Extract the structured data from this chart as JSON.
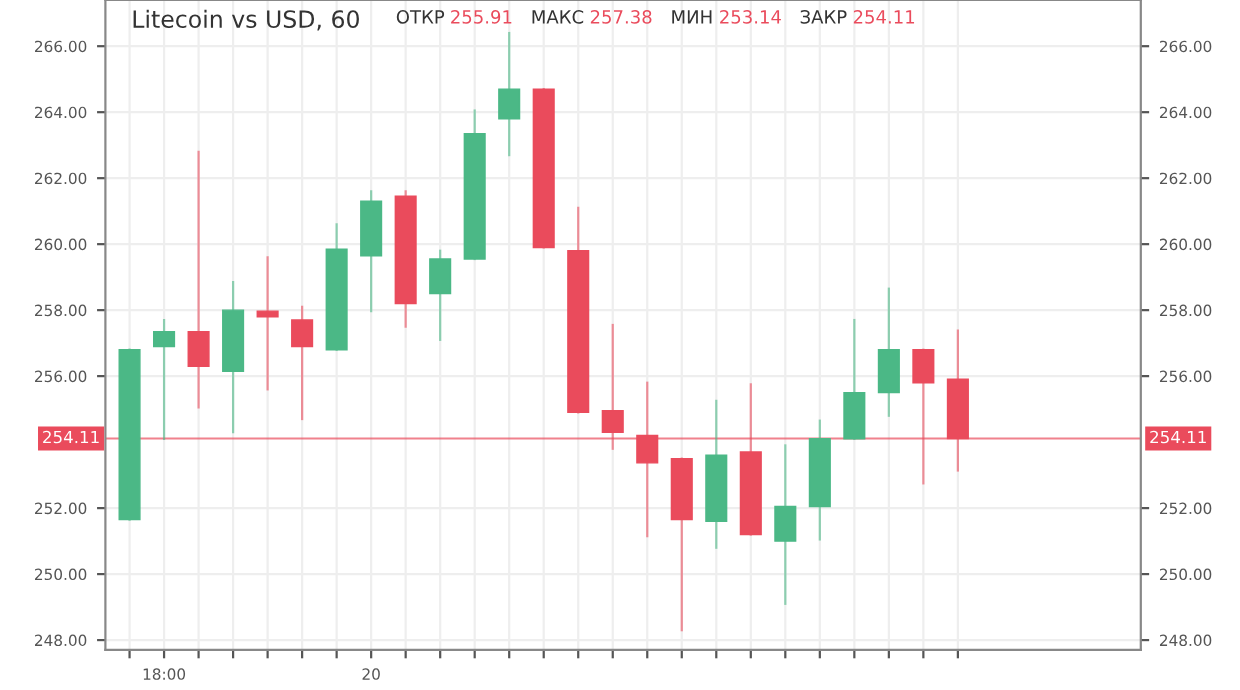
{
  "chart_data": {
    "type": "candlestick",
    "title": "Litecoin vs USD, 60",
    "annotations": [
      "ОТКР 255.91",
      "МАКС 257.38",
      "МИН 253.14",
      "ЗАКР 254.11"
    ],
    "categories": [
      null,
      "18:00",
      null,
      null,
      null,
      null,
      null,
      "20",
      null,
      null,
      null,
      null,
      null,
      null,
      null,
      null,
      null,
      null,
      null,
      null,
      null,
      null,
      null,
      null,
      null
    ],
    "ohlc": [
      [
        251.65,
        256.8,
        251.65,
        256.8
      ],
      [
        256.9,
        257.7,
        254.1,
        257.35
      ],
      [
        257.35,
        262.8,
        255.05,
        256.3
      ],
      [
        256.15,
        258.85,
        254.3,
        258.0
      ],
      [
        257.97,
        259.6,
        255.6,
        257.8
      ],
      [
        257.7,
        258.1,
        254.7,
        256.9
      ],
      [
        256.8,
        260.6,
        256.8,
        259.85
      ],
      [
        259.65,
        261.6,
        257.97,
        261.3
      ],
      [
        261.45,
        261.6,
        257.5,
        258.2
      ],
      [
        258.5,
        259.8,
        257.1,
        259.55
      ],
      [
        259.55,
        264.05,
        259.55,
        263.35
      ],
      [
        263.8,
        266.4,
        262.7,
        264.7
      ],
      [
        264.7,
        264.7,
        259.9,
        259.9
      ],
      [
        259.8,
        261.1,
        254.9,
        254.9
      ],
      [
        254.95,
        257.55,
        253.8,
        254.3
      ],
      [
        254.2,
        255.8,
        251.15,
        253.37
      ],
      [
        253.5,
        253.5,
        248.3,
        251.65
      ],
      [
        251.6,
        255.25,
        250.8,
        253.6
      ],
      [
        253.7,
        255.75,
        251.2,
        251.2
      ],
      [
        251.0,
        253.9,
        249.1,
        252.05
      ],
      [
        252.05,
        254.65,
        251.05,
        254.1
      ],
      [
        254.1,
        257.7,
        254.1,
        255.5
      ],
      [
        255.5,
        258.65,
        254.8,
        256.8
      ],
      [
        256.8,
        256.8,
        252.75,
        255.8
      ],
      [
        255.91,
        257.38,
        253.14,
        254.11
      ]
    ],
    "colors": [
      "#4bb886",
      "#4bb886",
      "#ea4b5c",
      "#4bb886",
      "#ea4b5c",
      "#ea4b5c",
      "#4bb886",
      "#4bb886",
      "#ea4b5c",
      "#4bb886",
      "#4bb886",
      "#4bb886",
      "#ea4b5c",
      "#ea4b5c",
      "#ea4b5c",
      "#ea4b5c",
      "#ea4b5c",
      "#4bb886",
      "#ea4b5c",
      "#4bb886",
      "#4bb886",
      "#4bb886",
      "#4bb886",
      "#ea4b5c",
      "#ea4b5c"
    ],
    "ylim": [
      247.7,
      267.4
    ],
    "yticks": [
      {
        "value": 248,
        "label": "248.00"
      },
      {
        "value": 250,
        "label": "250.00"
      },
      {
        "value": 252,
        "label": "252.00"
      },
      {
        "value": 256,
        "label": "256.00"
      },
      {
        "value": 258,
        "label": "258.00"
      },
      {
        "value": 260,
        "label": "260.00"
      },
      {
        "value": 262,
        "label": "262.00"
      },
      {
        "value": 264,
        "label": "264.00"
      },
      {
        "value": 266,
        "label": "266.00"
      }
    ],
    "ref_lines": [
      {
        "axis": "y",
        "value": 254.11,
        "label": "254.11",
        "color": "#ea4b5c"
      }
    ],
    "grid": true
  }
}
